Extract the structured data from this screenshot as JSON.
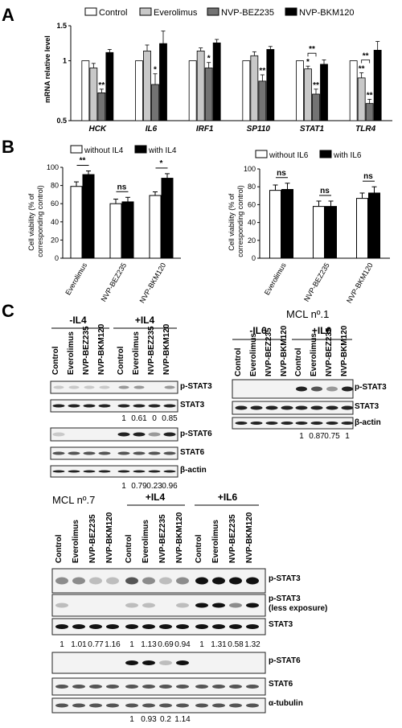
{
  "panels": {
    "a": "A",
    "b": "B",
    "c": "C"
  },
  "chart_data": [
    {
      "type": "bar",
      "panel": "A",
      "ylabel": "mRNA relative level",
      "ylim": [
        0.5,
        1.5
      ],
      "yscale": "log",
      "yticks": [
        "0.5",
        "1",
        "1.5"
      ],
      "categories": [
        "HCK",
        "IL6",
        "IRF1",
        "SP110",
        "STAT1",
        "TLR4"
      ],
      "series": [
        {
          "name": "Control",
          "color": "#ffffff",
          "values": [
            1,
            1,
            1,
            1,
            1,
            1
          ],
          "err": [
            0,
            0,
            0,
            0,
            0,
            0
          ]
        },
        {
          "name": "Everolimus",
          "color": "#c8c8c8",
          "values": [
            0.92,
            1.12,
            1.12,
            1.06,
            0.91,
            0.82
          ],
          "err": [
            0.05,
            0.08,
            0.04,
            0.05,
            0.03,
            0.05
          ]
        },
        {
          "name": "NVP-BEZ235",
          "color": "#737373",
          "values": [
            0.69,
            0.76,
            0.92,
            0.79,
            0.68,
            0.61
          ],
          "err": [
            0.03,
            0.1,
            0.06,
            0.06,
            0.04,
            0.03
          ]
        },
        {
          "name": "NVP-BKM120",
          "color": "#000000",
          "values": [
            1.1,
            1.22,
            1.23,
            1.14,
            0.96,
            1.13
          ],
          "err": [
            0.04,
            0.19,
            0.05,
            0.04,
            0.05,
            0.12
          ]
        }
      ],
      "annotations": [
        {
          "category": "HCK",
          "series": 2,
          "text": "**"
        },
        {
          "category": "IL6",
          "series": 2,
          "text": "*"
        },
        {
          "category": "IRF1",
          "series": 2,
          "text": "*"
        },
        {
          "category": "SP110",
          "series": 2,
          "text": "**"
        },
        {
          "category": "STAT1",
          "series": 1,
          "text": "*"
        },
        {
          "category": "STAT1",
          "series": 2,
          "text": "**"
        },
        {
          "category": "TLR4",
          "series": 1,
          "text": "**"
        },
        {
          "category": "TLR4",
          "series": 2,
          "text": "**"
        }
      ],
      "brackets": [
        {
          "category": "STAT1",
          "from": 1,
          "to": 2,
          "text": "**"
        },
        {
          "category": "TLR4",
          "from": 1,
          "to": 2,
          "text": "**"
        }
      ]
    },
    {
      "type": "bar",
      "panel": "B",
      "ylabel": "Cell viability (% of corresponding control)",
      "ylim": [
        0,
        100
      ],
      "yticks": [
        "0",
        "20",
        "40",
        "60",
        "80",
        "100"
      ],
      "categories": [
        "Everolimus",
        "NVP-BEZ235",
        "NVP-BKM120"
      ],
      "series": [
        {
          "name": "without IL4",
          "color": "#ffffff",
          "values": [
            79,
            60,
            69
          ],
          "err": [
            5,
            5,
            4
          ]
        },
        {
          "name": "with IL4",
          "color": "#000000",
          "values": [
            92,
            62,
            88
          ],
          "err": [
            4,
            5,
            5
          ]
        }
      ],
      "significance": [
        "**",
        "ns",
        "*"
      ]
    },
    {
      "type": "bar",
      "panel": "B",
      "ylabel": "Cell viability (% of corresponding control)",
      "ylim": [
        0,
        100
      ],
      "yticks": [
        "0",
        "20",
        "40",
        "60",
        "80",
        "100"
      ],
      "categories": [
        "Everolimus",
        "NVP-BEZ235",
        "NVP-BKM120"
      ],
      "series": [
        {
          "name": "without IL6",
          "color": "#ffffff",
          "values": [
            76,
            58,
            67
          ],
          "err": [
            6,
            6,
            6
          ]
        },
        {
          "name": "with IL6",
          "color": "#000000",
          "values": [
            77,
            58,
            73
          ],
          "err": [
            7,
            6,
            7
          ]
        }
      ],
      "significance": [
        "ns",
        "ns",
        "ns"
      ]
    }
  ],
  "blots": {
    "mcl1_title": "MCL nº.1",
    "mcl7_title": "MCL nº.7",
    "lanes": [
      "Control",
      "Everolimus",
      "NVP-BEZ235",
      "NVP-BKM120"
    ],
    "il4_minus": "-IL4",
    "il4_plus": "+IL4",
    "il6_minus": "-IL6",
    "il6_plus": "+IL6",
    "labels": {
      "pstat3": "p-STAT3",
      "stat3": "STAT3",
      "pstat6": "p-STAT6",
      "stat6": "STAT6",
      "bactin": "β-actin",
      "pstat3_less": "p-STAT3",
      "less_exposure": "(less exposure)",
      "tubulin": "α-tubulin"
    },
    "quant": {
      "il4_pstat3": [
        "1",
        "0.61",
        "0",
        "0.85"
      ],
      "il4_pstat6": [
        "1",
        "0.79",
        "0.23",
        "0.96"
      ],
      "il6_pstat3": [
        "1",
        "0.87",
        "0.75",
        "1"
      ],
      "mcl7_pstat3": [
        "1",
        "1.01",
        "0.77",
        "1.16",
        "1",
        "1.13",
        "0.69",
        "0.94",
        "1",
        "1.31",
        "0.58",
        "1.32"
      ],
      "mcl7_pstat6": [
        "1",
        "0.93",
        "0.2",
        "1.14"
      ]
    }
  }
}
